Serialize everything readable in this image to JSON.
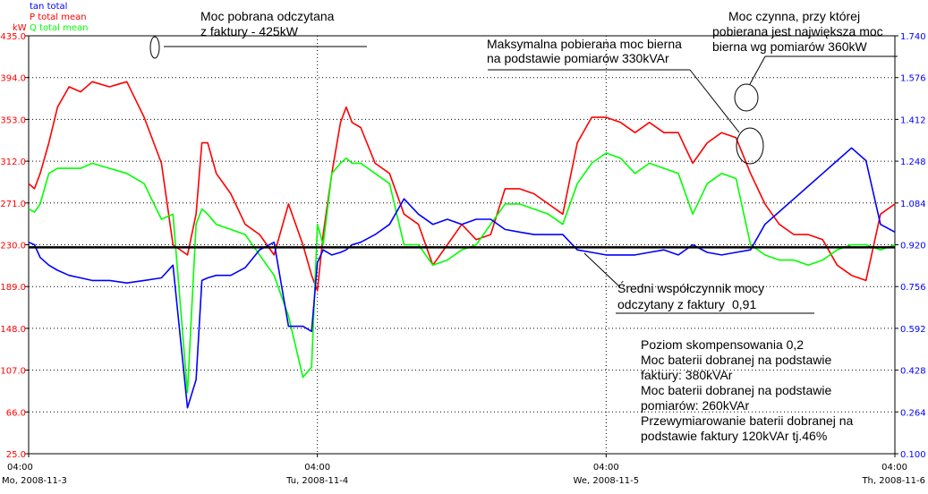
{
  "chart_data": {
    "type": "line",
    "legend": [
      {
        "name": "tan total",
        "color": "#0000ff"
      },
      {
        "name": "P total mean",
        "color": "#ff0000"
      },
      {
        "name": "Q total mean",
        "color": "#00ff00"
      }
    ],
    "y_left": {
      "unit": "kW",
      "ticks": [
        "435.0",
        "394.0",
        "353.0",
        "312.0",
        "271.0",
        "230.0",
        "189.0",
        "148.0",
        "107.0",
        "66.0",
        "25.0"
      ],
      "range": [
        25.0,
        435.0
      ]
    },
    "y_right": {
      "ticks": [
        "1.740",
        "1.576",
        "1.412",
        "1.248",
        "1.084",
        "0.920",
        "0.756",
        "0.592",
        "0.428",
        "0.264",
        "0.100"
      ],
      "range": [
        0.1,
        1.74
      ]
    },
    "x": {
      "ticks": [
        {
          "time": "04:00",
          "date": "Mo, 2008-11-3"
        },
        {
          "time": "04:00",
          "date": "Tu, 2008-11-4"
        },
        {
          "time": "04:00",
          "date": "We, 2008-11-5"
        },
        {
          "time": "04:00",
          "date": "Th, 2008-11-6"
        }
      ],
      "range_days": [
        0,
        3
      ]
    },
    "threshold_line": {
      "value": 0.91,
      "axis": "right"
    },
    "series": [
      {
        "name": "P total mean",
        "color": "#ff0000",
        "x_days": [
          0.0,
          0.02,
          0.04,
          0.07,
          0.1,
          0.14,
          0.18,
          0.22,
          0.28,
          0.34,
          0.4,
          0.46,
          0.5,
          0.55,
          0.58,
          0.6,
          0.62,
          0.65,
          0.7,
          0.75,
          0.8,
          0.85,
          0.9,
          0.95,
          0.98,
          1.0,
          1.02,
          1.05,
          1.08,
          1.1,
          1.12,
          1.15,
          1.2,
          1.25,
          1.3,
          1.35,
          1.4,
          1.45,
          1.5,
          1.55,
          1.6,
          1.65,
          1.7,
          1.75,
          1.8,
          1.85,
          1.9,
          1.95,
          2.0,
          2.05,
          2.1,
          2.15,
          2.2,
          2.25,
          2.3,
          2.35,
          2.4,
          2.45,
          2.5,
          2.55,
          2.6,
          2.65,
          2.7,
          2.75,
          2.8,
          2.85,
          2.9,
          2.95,
          3.0
        ],
        "values": [
          290,
          285,
          300,
          330,
          365,
          385,
          380,
          390,
          385,
          390,
          355,
          310,
          230,
          220,
          260,
          330,
          330,
          300,
          280,
          250,
          240,
          220,
          270,
          230,
          200,
          185,
          240,
          300,
          350,
          365,
          350,
          345,
          310,
          300,
          260,
          250,
          210,
          230,
          250,
          235,
          240,
          285,
          285,
          280,
          270,
          260,
          330,
          355,
          355,
          350,
          340,
          350,
          340,
          340,
          310,
          330,
          340,
          335,
          300,
          270,
          250,
          240,
          240,
          235,
          210,
          200,
          195,
          260,
          270
        ]
      },
      {
        "name": "Q total mean",
        "color": "#00ff00",
        "x_days": [
          0.0,
          0.02,
          0.04,
          0.07,
          0.1,
          0.14,
          0.18,
          0.22,
          0.28,
          0.34,
          0.4,
          0.46,
          0.5,
          0.55,
          0.58,
          0.6,
          0.62,
          0.65,
          0.7,
          0.75,
          0.8,
          0.85,
          0.9,
          0.95,
          0.98,
          1.0,
          1.02,
          1.05,
          1.08,
          1.1,
          1.12,
          1.15,
          1.2,
          1.25,
          1.3,
          1.35,
          1.4,
          1.45,
          1.5,
          1.55,
          1.6,
          1.65,
          1.7,
          1.75,
          1.8,
          1.85,
          1.9,
          1.95,
          2.0,
          2.05,
          2.1,
          2.15,
          2.2,
          2.25,
          2.3,
          2.35,
          2.4,
          2.45,
          2.5,
          2.55,
          2.6,
          2.65,
          2.7,
          2.75,
          2.8,
          2.85,
          2.9,
          2.95,
          3.0
        ],
        "values": [
          265,
          262,
          270,
          300,
          305,
          305,
          305,
          310,
          305,
          300,
          290,
          255,
          260,
          85,
          250,
          265,
          260,
          250,
          245,
          240,
          220,
          200,
          160,
          100,
          110,
          250,
          230,
          300,
          310,
          315,
          310,
          310,
          300,
          290,
          230,
          230,
          210,
          215,
          225,
          230,
          250,
          270,
          270,
          265,
          260,
          250,
          290,
          310,
          320,
          315,
          300,
          310,
          305,
          300,
          260,
          290,
          300,
          295,
          230,
          220,
          215,
          215,
          210,
          215,
          225,
          230,
          230,
          225,
          230
        ]
      },
      {
        "name": "tan total",
        "color": "#0000ff",
        "x_days": [
          0.0,
          0.02,
          0.04,
          0.07,
          0.1,
          0.14,
          0.18,
          0.22,
          0.28,
          0.34,
          0.4,
          0.46,
          0.5,
          0.55,
          0.58,
          0.6,
          0.62,
          0.65,
          0.7,
          0.75,
          0.8,
          0.85,
          0.9,
          0.95,
          0.98,
          1.0,
          1.02,
          1.05,
          1.08,
          1.1,
          1.12,
          1.15,
          1.2,
          1.25,
          1.3,
          1.35,
          1.4,
          1.45,
          1.5,
          1.55,
          1.6,
          1.65,
          1.7,
          1.75,
          1.8,
          1.85,
          1.9,
          1.95,
          2.0,
          2.05,
          2.1,
          2.15,
          2.2,
          2.25,
          2.3,
          2.35,
          2.4,
          2.45,
          2.5,
          2.55,
          2.6,
          2.65,
          2.7,
          2.75,
          2.8,
          2.85,
          2.9,
          2.95,
          3.0
        ],
        "values": [
          0.93,
          0.92,
          0.87,
          0.84,
          0.82,
          0.8,
          0.79,
          0.78,
          0.78,
          0.77,
          0.78,
          0.79,
          0.84,
          0.28,
          0.39,
          0.78,
          0.79,
          0.8,
          0.8,
          0.83,
          0.9,
          0.93,
          0.6,
          0.6,
          0.58,
          0.85,
          0.9,
          0.88,
          0.89,
          0.9,
          0.92,
          0.93,
          0.96,
          1.0,
          1.1,
          1.04,
          1.0,
          1.02,
          1.0,
          1.02,
          1.02,
          0.98,
          0.97,
          0.96,
          0.96,
          0.96,
          0.9,
          0.89,
          0.88,
          0.88,
          0.88,
          0.89,
          0.9,
          0.88,
          0.92,
          0.89,
          0.88,
          0.89,
          0.9,
          1.0,
          1.05,
          1.1,
          1.15,
          1.2,
          1.25,
          1.3,
          1.25,
          1.0,
          0.97
        ]
      }
    ]
  },
  "annotations": {
    "moc_pobrana_line1": "Moc pobrana odczytana",
    "moc_pobrana_line2": "z faktury - 425kW",
    "maks_moc_line1": "Maksymalna pobierana moc bierna",
    "maks_moc_line2": "na podstawie pomiarów 330kVAr",
    "moc_czynna_line1": "Moc czynna, przy której",
    "moc_czynna_line2": "pobierana jest największa moc",
    "moc_czynna_line3": "bierna wg  pomiarów  360kW",
    "sredni_line1": "Średni współczynnik mocy",
    "sredni_line2": "odczytany z faktury",
    "sredni_value": "0,91",
    "poziom": "Poziom skompensowania 0,2",
    "bateria1_line1": "Moc baterii dobranej na podstawie",
    "bateria1_line2": "faktury: 380kVAr",
    "bateria2_line1": "Moc baterii dobranej na podstawie",
    "bateria2_line2": "pomiarów: 260kVAr",
    "przewym_line1": "Przewymiarowanie baterii dobranej na",
    "przewym_line2": "podstawie faktury 120kVAr tj.46%"
  }
}
